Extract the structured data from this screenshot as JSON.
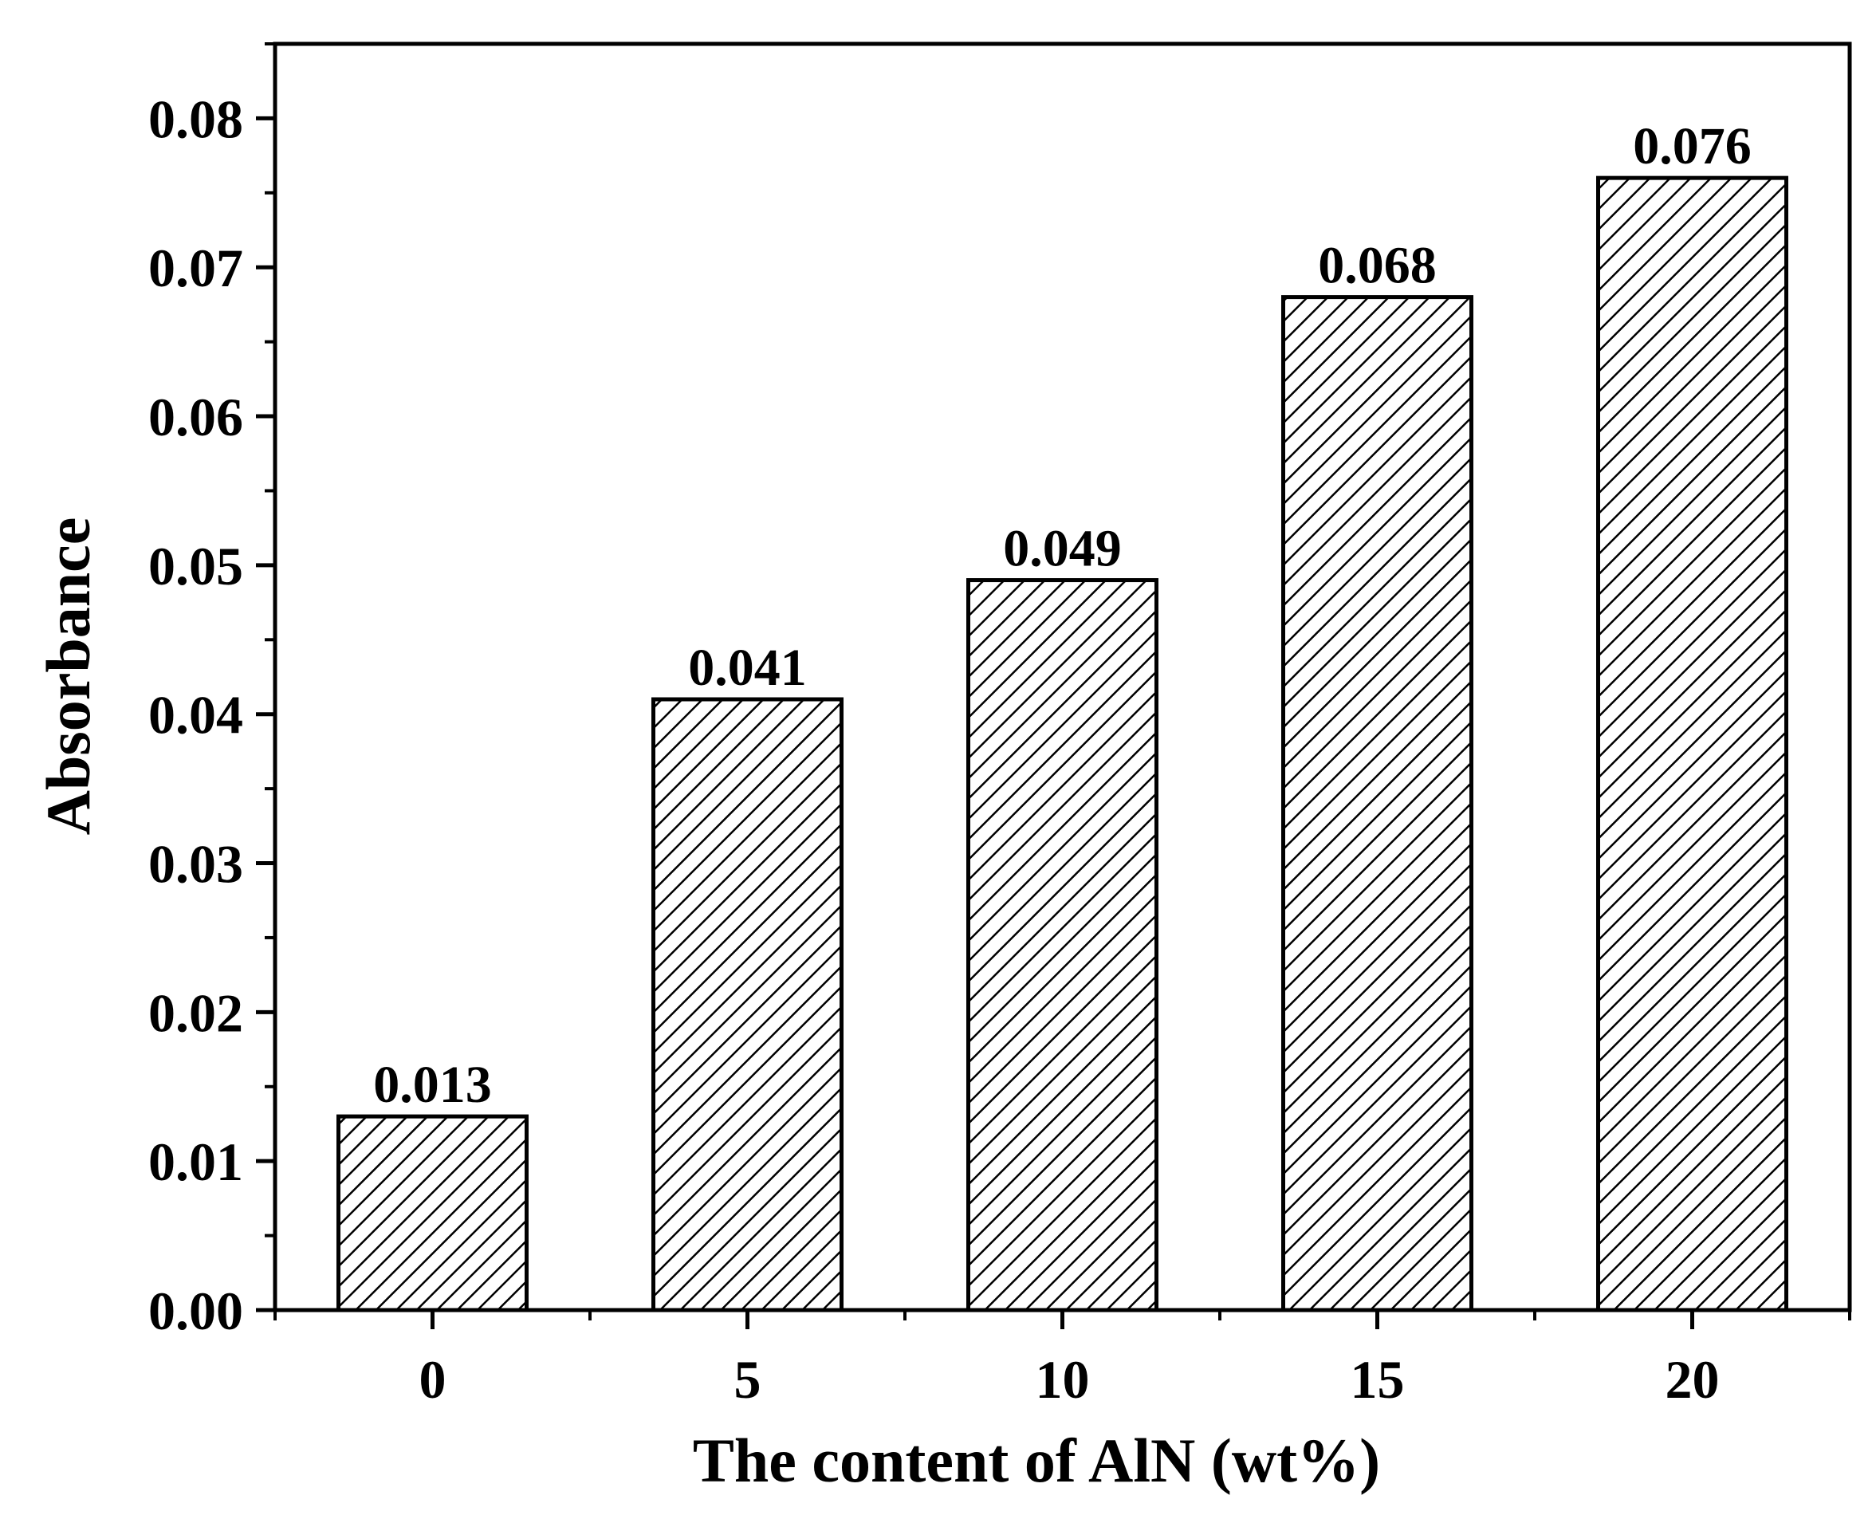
{
  "chart_data": {
    "type": "bar",
    "title": "",
    "xlabel": "The content of AlN (wt%)",
    "ylabel": "Absorbance",
    "categories": [
      "0",
      "5",
      "10",
      "15",
      "20"
    ],
    "values": [
      0.013,
      0.041,
      0.049,
      0.068,
      0.076
    ],
    "data_labels": [
      "0.013",
      "0.041",
      "0.049",
      "0.068",
      "0.076"
    ],
    "ylim": [
      0,
      0.085
    ],
    "y_ticks": [
      "0.00",
      "0.01",
      "0.02",
      "0.03",
      "0.04",
      "0.05",
      "0.06",
      "0.07",
      "0.08"
    ],
    "y_tick_values": [
      0,
      0.01,
      0.02,
      0.03,
      0.04,
      0.05,
      0.06,
      0.07,
      0.08
    ],
    "bar_fill": "hatched diagonal",
    "colors": {
      "bar_edge": "#000000",
      "hatch": "#000000",
      "background": "#ffffff"
    },
    "grid": false,
    "legend": "none"
  }
}
